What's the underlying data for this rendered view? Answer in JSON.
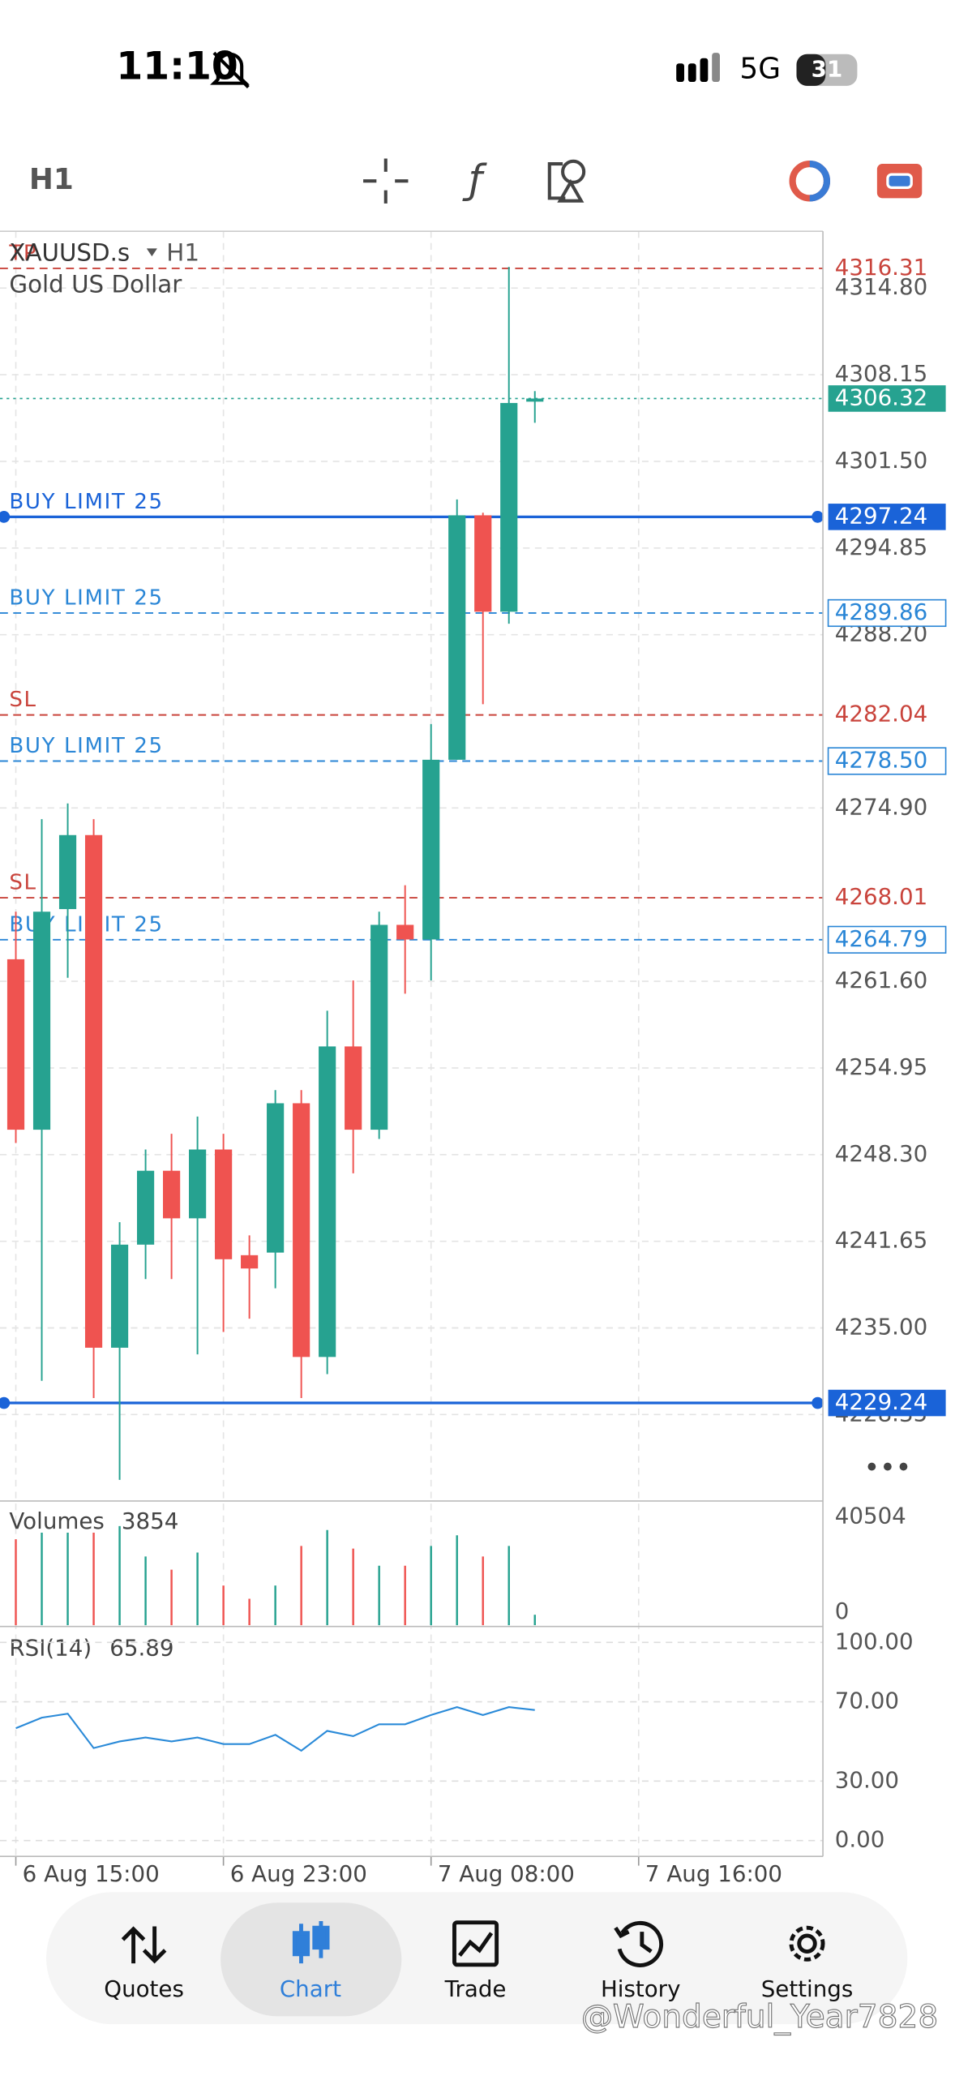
{
  "status_bar": {
    "time": "11:10",
    "network": "5G",
    "battery": "31"
  },
  "toolbar": {
    "timeframe": "H1"
  },
  "chart_data": {
    "type": "candlestick",
    "symbol": "XAUUSD.s",
    "timeframe": "H1",
    "description": "Gold US Dollar",
    "up_color": "#26a290",
    "down_color": "#ef5350",
    "open": [
      4263.29,
      4250.21,
      4267.14,
      4272.82,
      4233.48,
      4241.39,
      4247.06,
      4243.41,
      4248.69,
      4240.58,
      4240.78,
      4252.24,
      4232.77,
      4256.6,
      4250.21,
      4265.93,
      4264.81,
      4278.6,
      4297.36,
      4289.96,
      4306.08
    ],
    "high": [
      4266.94,
      4274.04,
      4275.25,
      4274.04,
      4243.11,
      4248.69,
      4249.9,
      4251.22,
      4249.9,
      4242.1,
      4253.25,
      4253.25,
      4259.34,
      4261.67,
      4266.94,
      4268.97,
      4281.34,
      4298.58,
      4297.56,
      4316.42,
      4306.89
    ],
    "low": [
      4249.19,
      4230.94,
      4261.87,
      4229.62,
      4223.34,
      4238.75,
      4238.75,
      4232.97,
      4234.69,
      4235.71,
      4238.04,
      4229.62,
      4231.45,
      4246.86,
      4249.5,
      4260.65,
      4261.67,
      4278.6,
      4282.86,
      4289.04,
      4304.46
    ],
    "close": [
      4250.21,
      4266.94,
      4272.82,
      4233.48,
      4241.39,
      4247.06,
      4243.41,
      4248.69,
      4240.27,
      4239.56,
      4252.24,
      4232.77,
      4256.6,
      4250.21,
      4265.93,
      4264.81,
      4278.6,
      4297.36,
      4289.96,
      4305.98,
      4306.32
    ],
    "xlim": [
      -0.61,
      31.1
    ],
    "xticks": [
      {
        "value": 0,
        "label": "6 Aug 15:00"
      },
      {
        "value": 8,
        "label": "6 Aug 23:00"
      },
      {
        "value": 16,
        "label": "7 Aug 08:00"
      },
      {
        "value": 24,
        "label": "7 Aug 16:00"
      }
    ],
    "ylim": [
      4221.82,
      4319.16
    ],
    "yticks": [
      {
        "value": 4314.8,
        "label": "4314.80"
      },
      4308.15,
      {
        "value": 4301.5,
        "label": "4301.50"
      },
      4294.85,
      {
        "value": 4288.2,
        "label": "4288.20"
      },
      {
        "value": 4274.9,
        "label": "4274.90"
      },
      {
        "value": 4261.6,
        "label": "4261.60"
      },
      4254.95,
      {
        "value": 4248.3,
        "label": "4248.30"
      },
      4241.65,
      {
        "value": 4235,
        "label": "4235.00"
      },
      4228.35
    ],
    "grid": true,
    "current_price": 4306.32,
    "current_color": "#26a290",
    "levels": [
      {
        "label": "TP",
        "price": 4316.31,
        "color": "#c9443c",
        "style": "dashed",
        "tag": "text"
      },
      {
        "label": "BUY LIMIT 25",
        "price": 4297.24,
        "color": "#1a63d8",
        "style": "solid",
        "tag": "filled"
      },
      {
        "label": "BUY LIMIT 25",
        "price": 4289.86,
        "color": "#2a86d6",
        "style": "dashed",
        "tag": "outline"
      },
      {
        "label": "SL",
        "price": 4282.04,
        "color": "#c9443c",
        "style": "dashed",
        "tag": "text"
      },
      {
        "label": "BUY LIMIT 25",
        "price": {
          "value": 4278.5,
          "label": "4278.50"
        },
        "color": "#2a86d6",
        "style": "dashed",
        "tag": "outline"
      },
      {
        "label": "SL",
        "price": 4268.01,
        "color": "#c9443c",
        "style": "dashed",
        "tag": "text"
      },
      {
        "label": "BUY LIMIT 25",
        "price": 4264.79,
        "color": "#2a86d6",
        "style": "dashed",
        "tag": "outline"
      },
      {
        "price": 4229.24,
        "color": "#1a63d8",
        "style": "solid",
        "tag": "filled"
      }
    ],
    "volumes": {
      "title": "Volumes",
      "last": 3854,
      "values": [
        31720,
        34160,
        34160,
        34160,
        36600,
        25380,
        20500,
        26840,
        14640,
        9760,
        14640,
        29280,
        35140,
        28300,
        21960,
        21960,
        29280,
        33180,
        25380,
        29280,
        3854
      ],
      "ylim": [
        0,
        40504
      ],
      "yticks": [
        40504,
        0
      ]
    },
    "rsi": {
      "title": "RSI(14)",
      "last": 65.89,
      "color": "#2a8ad8",
      "values": [
        56.7,
        62,
        64,
        46.7,
        50,
        52,
        50,
        52,
        48.7,
        48.7,
        53.3,
        45.3,
        55.3,
        52.7,
        58.7,
        58.7,
        63.3,
        67.3,
        63.3,
        67.3,
        65.89
      ],
      "ylim": [
        0,
        100
      ],
      "yticks": [
        {
          "value": 100,
          "label": "100.00"
        },
        {
          "value": 70,
          "label": "70.00"
        },
        {
          "value": 30,
          "label": "30.00"
        },
        {
          "value": 0,
          "label": "0.00"
        }
      ]
    }
  },
  "nav": {
    "items": [
      "Quotes",
      "Chart",
      "Trade",
      "History",
      "Settings"
    ]
  },
  "watermark": "@Wonderful_Year7828"
}
